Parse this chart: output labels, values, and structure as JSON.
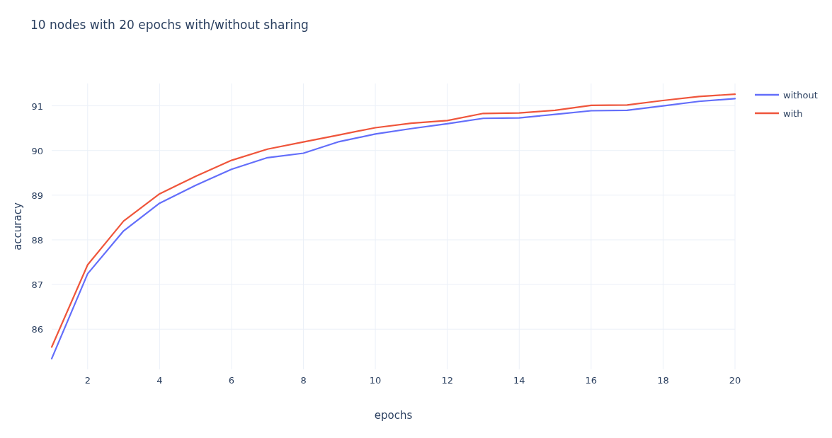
{
  "chart_data": {
    "type": "line",
    "title": "10 nodes with 20 epochs with/without sharing",
    "xlabel": "epochs",
    "ylabel": "accuracy",
    "x": [
      1,
      2,
      3,
      4,
      5,
      6,
      7,
      8,
      9,
      10,
      11,
      12,
      13,
      14,
      15,
      16,
      17,
      18,
      19,
      20
    ],
    "series": [
      {
        "name": "without",
        "color": "#636efa",
        "values": [
          85.34,
          87.24,
          88.2,
          88.82,
          89.22,
          89.58,
          89.84,
          89.94,
          90.2,
          90.37,
          90.49,
          90.6,
          90.72,
          90.73,
          90.81,
          90.89,
          90.9,
          91.0,
          91.1,
          91.16
        ]
      },
      {
        "name": "with",
        "color": "#ef553b",
        "values": [
          85.6,
          87.44,
          88.42,
          89.03,
          89.42,
          89.78,
          90.03,
          90.19,
          90.35,
          90.51,
          90.61,
          90.67,
          90.83,
          90.84,
          90.9,
          91.01,
          91.02,
          91.12,
          91.21,
          91.26
        ]
      }
    ],
    "xlim": [
      1,
      20
    ],
    "xticks": [
      2,
      4,
      6,
      8,
      10,
      12,
      14,
      16,
      18,
      20
    ],
    "ylim": [
      85.1,
      91.5
    ],
    "yticks": [
      86,
      87,
      88,
      89,
      90,
      91
    ],
    "grid": true,
    "legend": "top right",
    "marker": "none",
    "line_style": "solid"
  }
}
